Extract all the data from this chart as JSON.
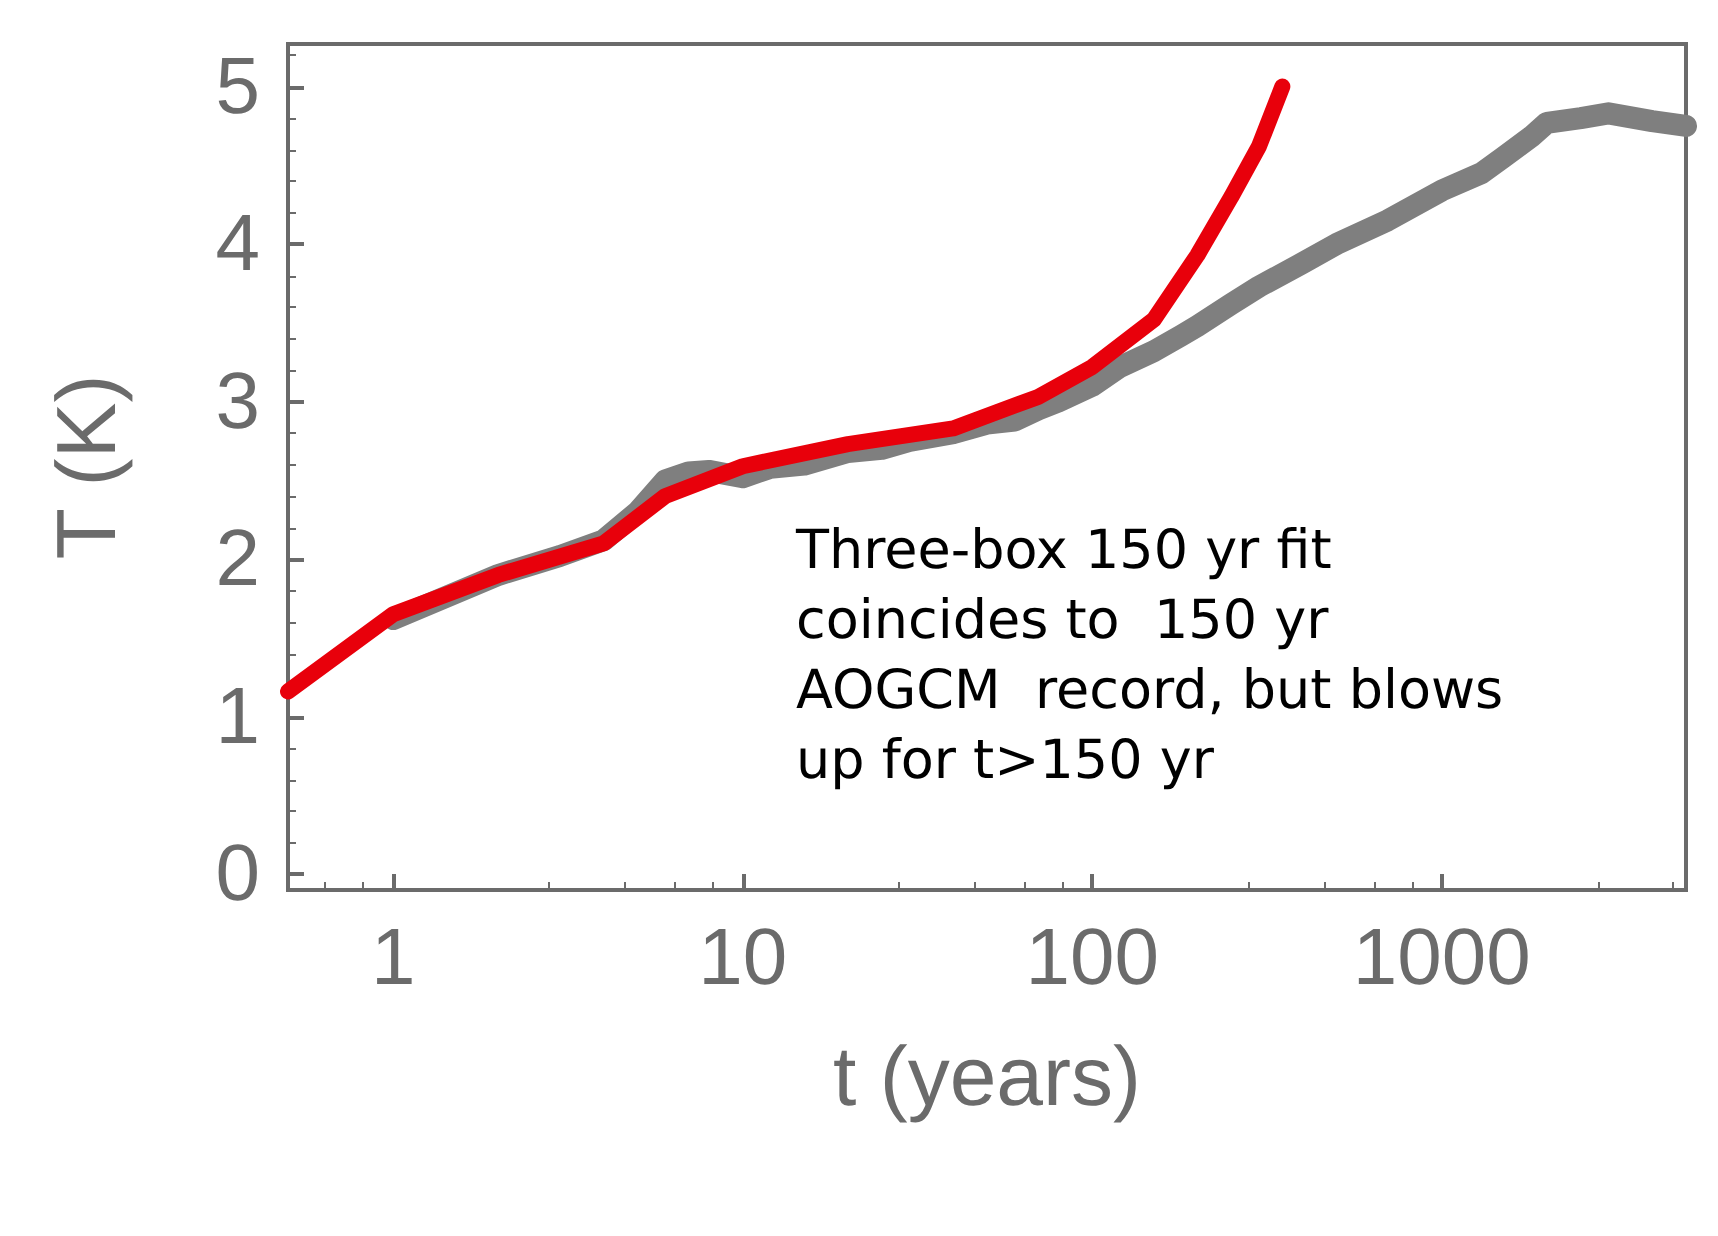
{
  "chart_data": {
    "type": "line",
    "xlabel": "t (years)",
    "ylabel": "T (K)",
    "log": "x",
    "grid": false,
    "marker": "none",
    "line_style": "solid",
    "xlim": [
      0.5,
      5000
    ],
    "xticks": [
      1,
      10,
      100,
      1000
    ],
    "ylim": [
      -0.1,
      5.27
    ],
    "yticks": [
      0,
      1,
      2,
      3,
      4,
      5
    ],
    "annotations": [
      "Three-box 150 yr fit\ncoincides to  150 yr\nAOGCM  record, but blows\nup for t>150 yr"
    ],
    "series": [
      {
        "color": "#7f7f7f",
        "x": [
          1,
          2,
          3,
          4,
          5,
          6,
          7,
          8,
          10,
          12,
          15,
          20,
          25,
          30,
          40,
          50,
          60,
          70,
          80,
          100,
          120,
          150,
          180,
          200,
          250,
          300,
          400,
          500,
          700,
          1000,
          1300,
          1500,
          1800,
          2000,
          2500,
          3000,
          4000,
          5000
        ],
        "values": [
          1.62,
          1.9,
          2.02,
          2.12,
          2.3,
          2.5,
          2.55,
          2.56,
          2.52,
          2.58,
          2.6,
          2.68,
          2.7,
          2.75,
          2.8,
          2.86,
          2.88,
          2.95,
          3.0,
          3.1,
          3.22,
          3.32,
          3.42,
          3.48,
          3.62,
          3.73,
          3.88,
          4.0,
          4.15,
          4.34,
          4.45,
          4.55,
          4.68,
          4.77,
          4.8,
          4.83,
          4.78,
          4.75
        ]
      },
      {
        "color": "#e8000b",
        "x": [
          0.5,
          1,
          2,
          4,
          6,
          10,
          20,
          40,
          70,
          100,
          150,
          200,
          250,
          300,
          350
        ],
        "values": [
          1.16,
          1.65,
          1.9,
          2.1,
          2.4,
          2.59,
          2.73,
          2.83,
          3.03,
          3.22,
          3.52,
          3.93,
          4.3,
          4.62,
          5.0
        ]
      }
    ]
  }
}
